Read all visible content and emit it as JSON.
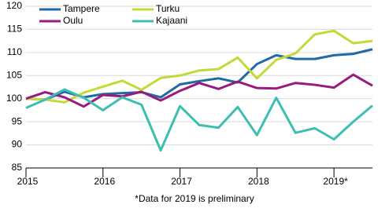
{
  "chart_data": {
    "type": "line",
    "categories": [
      "2015",
      null,
      null,
      null,
      "2016",
      null,
      null,
      null,
      "2017",
      null,
      null,
      null,
      "2018",
      null,
      null,
      null,
      "2019*",
      null,
      null
    ],
    "series": [
      {
        "name": "Tampere",
        "color": "#1f6aa5",
        "values": [
          100,
          99.8,
          101.5,
          100.3,
          101,
          101.2,
          101.4,
          100.3,
          103.1,
          103.8,
          104.4,
          103.5,
          107.5,
          109.4,
          108.6,
          108.6,
          109.4,
          109.7,
          110.7
        ]
      },
      {
        "name": "Turku",
        "color": "#c5d936",
        "values": [
          100,
          99.8,
          99.2,
          101.3,
          102.6,
          103.9,
          101.9,
          104.5,
          105,
          106.1,
          106.4,
          108.9,
          104.4,
          108.4,
          109.8,
          113.9,
          114.7,
          112,
          112.5
        ]
      },
      {
        "name": "Oulu",
        "color": "#9b1a7f",
        "values": [
          100,
          101.4,
          100.3,
          98.3,
          100.8,
          100.5,
          101.5,
          99.6,
          101.7,
          103.4,
          102.1,
          103.7,
          102.3,
          102.2,
          103.4,
          103,
          102.4,
          105.2,
          102.8
        ]
      },
      {
        "name": "Kajaani",
        "color": "#3cbfb0",
        "values": [
          98,
          99.8,
          102,
          100.2,
          97.5,
          100.3,
          98.7,
          88.8,
          98.4,
          94.3,
          93.7,
          98.2,
          92.1,
          100.2,
          92.6,
          93.6,
          91.2,
          95,
          98.5
        ]
      }
    ],
    "ylim": [
      85,
      120
    ],
    "yticks": [
      85,
      90,
      95,
      100,
      105,
      110,
      115,
      120
    ],
    "grid": true,
    "footnote": "*Data for 2019 is preliminary"
  }
}
